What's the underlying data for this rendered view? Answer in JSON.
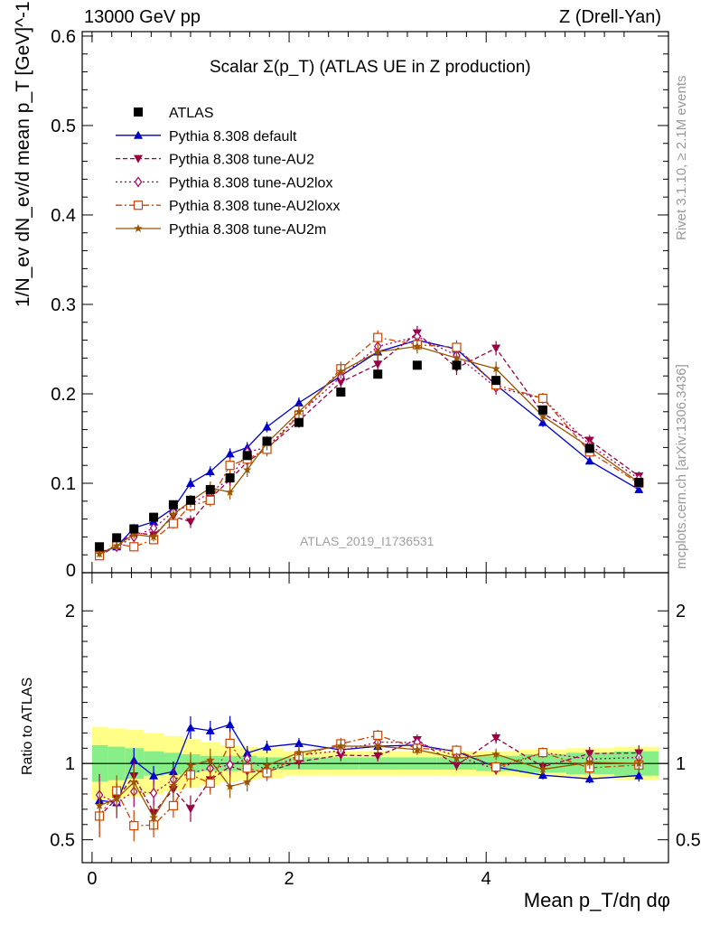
{
  "header": {
    "left": "13000 GeV pp",
    "right": "Z (Drell-Yan)"
  },
  "side_labels": {
    "rivet": "Rivet 3.1.10, ≥ 2.1M events",
    "mcplots": "mcplots.cern.ch [arXiv:1306.3436]"
  },
  "analysis_ref": "ATLAS_2019_I1736531",
  "chart_data": {
    "type": "scatter",
    "title": "Scalar Σ(p_T) (ATLAS UE in Z production)",
    "xlabel": "Mean p_T/dη dφ",
    "ylabel": "1/N_ev dN_ev/d mean p_T [GeV]^-1",
    "ratio_ylabel": "Ratio to ATLAS",
    "xlim": [
      -0.1,
      5.85
    ],
    "ylim": [
      0,
      0.605
    ],
    "ratio_ylim": [
      0.35,
      2.25
    ],
    "x_ticks": [
      0,
      2,
      4
    ],
    "y_ticks": [
      0,
      0.1,
      0.2,
      0.3,
      0.4,
      0.5,
      0.6
    ],
    "y_tick_labels": [
      "0",
      "0.1",
      "0.2",
      "0.3",
      "0.4",
      "0.5",
      "0.6"
    ],
    "ratio_y_ticks": [
      0.5,
      1,
      2
    ],
    "ratio_y_tick_labels": [
      "0.5",
      "1",
      "2"
    ],
    "legend_position": "top-left",
    "x": [
      0.075,
      0.25,
      0.425,
      0.625,
      0.825,
      1.0,
      1.2,
      1.4,
      1.575,
      1.775,
      2.1,
      2.525,
      2.9,
      3.3,
      3.7,
      4.1,
      4.575,
      5.05,
      5.55
    ],
    "data": {
      "name": "ATLAS",
      "values": [
        0.029,
        0.039,
        0.049,
        0.062,
        0.076,
        0.081,
        0.093,
        0.106,
        0.131,
        0.147,
        0.168,
        0.202,
        0.222,
        0.232,
        0.232,
        0.215,
        0.182,
        0.139,
        0.101
      ],
      "ratio_band_green": [
        0.88,
        0.89,
        0.9,
        0.92,
        0.93,
        0.94,
        0.95,
        0.95,
        0.95,
        0.96,
        0.96,
        0.96,
        0.96,
        0.96,
        0.96,
        0.95,
        0.94,
        0.93,
        0.92
      ],
      "ratio_band_yellow": [
        0.76,
        0.77,
        0.78,
        0.8,
        0.82,
        0.84,
        0.86,
        0.88,
        0.89,
        0.9,
        0.92,
        0.92,
        0.92,
        0.92,
        0.92,
        0.92,
        0.91,
        0.9,
        0.89
      ]
    },
    "series": [
      {
        "name": "Pythia 8.308 default",
        "color": "#0000cc",
        "marker": "triangle-up",
        "dash": "",
        "values": [
          0.022,
          0.029,
          0.05,
          0.057,
          0.072,
          0.1,
          0.113,
          0.133,
          0.14,
          0.163,
          0.19,
          0.22,
          0.247,
          0.26,
          0.25,
          0.21,
          0.168,
          0.125,
          0.093
        ],
        "errors": [
          0.003,
          0.003,
          0.004,
          0.004,
          0.005,
          0.006,
          0.006,
          0.006,
          0.006,
          0.006,
          0.006,
          0.006,
          0.006,
          0.006,
          0.006,
          0.005,
          0.005,
          0.004,
          0.004
        ]
      },
      {
        "name": "Pythia 8.308 tune-AU2",
        "color": "#990044",
        "marker": "triangle-down",
        "dash": "5,3",
        "values": [
          0.019,
          0.03,
          0.045,
          0.042,
          0.063,
          0.057,
          0.083,
          0.104,
          0.124,
          0.139,
          0.17,
          0.213,
          0.233,
          0.268,
          0.229,
          0.251,
          0.178,
          0.148,
          0.108
        ],
        "errors": [
          0.004,
          0.004,
          0.005,
          0.005,
          0.006,
          0.007,
          0.007,
          0.008,
          0.008,
          0.008,
          0.008,
          0.008,
          0.008,
          0.008,
          0.008,
          0.008,
          0.006,
          0.006,
          0.005
        ]
      },
      {
        "name": "Pythia 8.308 tune-AU2lox",
        "color": "#aa0066",
        "marker": "diamond-open",
        "dash": "2,3",
        "values": [
          0.023,
          0.029,
          0.04,
          0.05,
          0.068,
          0.076,
          0.09,
          0.105,
          0.135,
          0.14,
          0.177,
          0.219,
          0.253,
          0.264,
          0.243,
          0.207,
          0.195,
          0.143,
          0.105
        ],
        "errors": [
          0.004,
          0.004,
          0.005,
          0.005,
          0.006,
          0.007,
          0.007,
          0.008,
          0.008,
          0.008,
          0.008,
          0.008,
          0.008,
          0.008,
          0.008,
          0.008,
          0.006,
          0.006,
          0.005
        ]
      },
      {
        "name": "Pythia 8.308 tune-AU2loxx",
        "color": "#cc4400",
        "marker": "square-open",
        "dash": "7,3,2,3",
        "values": [
          0.019,
          0.032,
          0.029,
          0.037,
          0.055,
          0.075,
          0.081,
          0.12,
          0.127,
          0.138,
          0.176,
          0.228,
          0.263,
          0.255,
          0.252,
          0.21,
          0.195,
          0.135,
          0.1
        ],
        "errors": [
          0.004,
          0.004,
          0.005,
          0.005,
          0.006,
          0.007,
          0.007,
          0.008,
          0.008,
          0.008,
          0.008,
          0.008,
          0.008,
          0.008,
          0.008,
          0.008,
          0.006,
          0.006,
          0.005
        ]
      },
      {
        "name": "Pythia 8.308 tune-AU2m",
        "color": "#995500",
        "marker": "star",
        "dash": "",
        "values": [
          0.021,
          0.03,
          0.043,
          0.04,
          0.065,
          0.08,
          0.095,
          0.09,
          0.115,
          0.145,
          0.18,
          0.225,
          0.247,
          0.253,
          0.24,
          0.228,
          0.175,
          0.14,
          0.101
        ],
        "errors": [
          0.004,
          0.004,
          0.005,
          0.005,
          0.006,
          0.007,
          0.007,
          0.008,
          0.008,
          0.008,
          0.008,
          0.008,
          0.008,
          0.008,
          0.008,
          0.008,
          0.006,
          0.006,
          0.005
        ]
      }
    ]
  }
}
